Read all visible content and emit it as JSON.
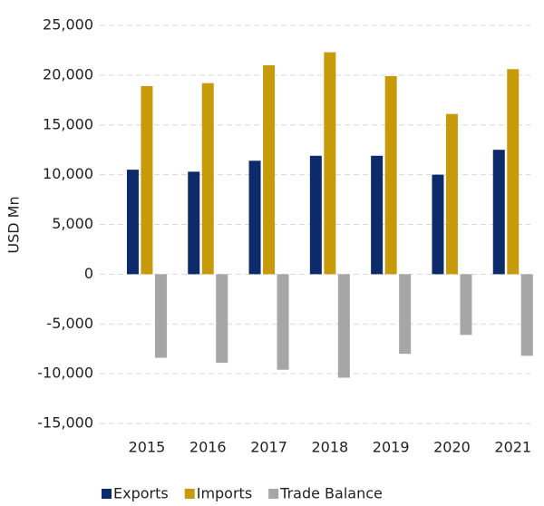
{
  "chart_data": {
    "type": "bar",
    "y_label": "USD Mn",
    "categories": [
      "2015",
      "2016",
      "2017",
      "2018",
      "2019",
      "2020",
      "2021"
    ],
    "series": [
      {
        "name": "Exports",
        "color": "#0d2a6b",
        "values": [
          10500,
          10300,
          11400,
          11900,
          11900,
          10000,
          12500
        ]
      },
      {
        "name": "Imports",
        "color": "#c79a0a",
        "values": [
          18900,
          19200,
          21000,
          22300,
          19900,
          16100,
          20600
        ]
      },
      {
        "name": "Trade Balance",
        "color": "#a6a6a6",
        "values": [
          -8400,
          -8900,
          -9600,
          -10400,
          -8000,
          -6100,
          -8200
        ]
      }
    ],
    "ylim": [
      -15000,
      25000
    ],
    "yticks": [
      {
        "value": -15000,
        "label": "-15,000"
      },
      {
        "value": -10000,
        "label": "-10,000"
      },
      {
        "value": -5000,
        "label": "-5,000"
      },
      0,
      {
        "value": 5000,
        "label": "5,000"
      },
      {
        "value": 10000,
        "label": "10,000"
      },
      {
        "value": 15000,
        "label": "15,000"
      },
      {
        "value": 20000,
        "label": "20,000"
      },
      {
        "value": 25000,
        "label": "25,000"
      }
    ],
    "grid": true,
    "legend": "bottom"
  }
}
